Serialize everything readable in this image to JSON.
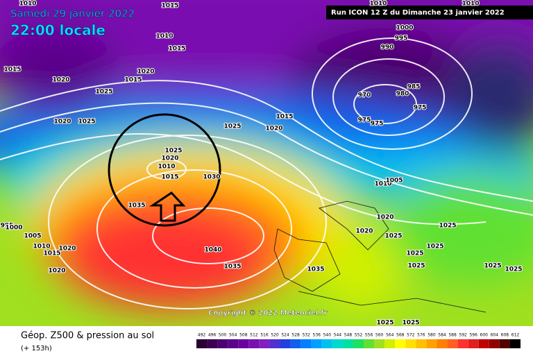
{
  "header": {
    "date": "Samedi 29 janvier 2022",
    "time": "22:00 locale",
    "run": "Run ICON 12 Z du Dimanche 23 janvier 2022"
  },
  "copyright": "Copyright © 2022 Meteociel.fr",
  "footer": {
    "title": "Géop. Z500 & pression au sol",
    "lead": "(+ 153h)"
  },
  "isobar_labels": [
    1010,
    1015,
    1015,
    1020,
    1025,
    1020,
    1015,
    1015,
    1010,
    1020,
    1025,
    1025,
    1020,
    1015,
    1025,
    1020,
    1010,
    1015,
    1030,
    1035,
    1040,
    1035,
    1035,
    1000,
    995,
    990,
    985,
    980,
    970,
    975,
    975,
    975,
    1010,
    1005,
    1020,
    1020,
    1025,
    1025,
    1025,
    1025,
    1025,
    1025,
    1025,
    995,
    1000,
    1005,
    1010,
    1015,
    1020,
    1020,
    1025,
    1025,
    1010,
    1010
  ],
  "scale": {
    "labels": [
      492,
      496,
      500,
      504,
      508,
      512,
      516,
      520,
      524,
      528,
      532,
      536,
      540,
      544,
      548,
      552,
      556,
      560,
      564,
      568,
      572,
      576,
      580,
      584,
      588,
      592,
      596,
      600,
      604,
      608,
      612
    ],
    "colors": [
      "#2a0033",
      "#3c0050",
      "#4b0070",
      "#5a008a",
      "#6a00a0",
      "#7a10b0",
      "#8020c0",
      "#5030d0",
      "#2040e0",
      "#1060f0",
      "#0080ff",
      "#00a0ff",
      "#00c0f0",
      "#00d8d0",
      "#00e0a0",
      "#20e060",
      "#60e030",
      "#a0e020",
      "#d0f000",
      "#ffff00",
      "#ffe000",
      "#ffc000",
      "#ffa000",
      "#ff8000",
      "#ff6020",
      "#ff3030",
      "#e02020",
      "#c00000",
      "#900000",
      "#500000",
      "#000000"
    ]
  }
}
